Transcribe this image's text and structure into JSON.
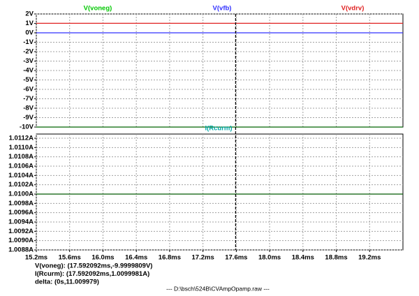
{
  "chart_data": [
    {
      "type": "line",
      "xlim": [
        15.2,
        19.6
      ],
      "ylim": [
        -10,
        2
      ],
      "yticks": [
        {
          "value": 2,
          "label": "2V"
        },
        {
          "value": 1,
          "label": "1V"
        },
        {
          "value": 0,
          "label": "0V"
        },
        {
          "value": -1,
          "label": "-1V"
        },
        {
          "value": -2,
          "label": "-2V"
        },
        {
          "value": -3,
          "label": "-3V"
        },
        {
          "value": -4,
          "label": "-4V"
        },
        {
          "value": -5,
          "label": "-5V"
        },
        {
          "value": -6,
          "label": "-6V"
        },
        {
          "value": -7,
          "label": "-7V"
        },
        {
          "value": -8,
          "label": "-8V"
        },
        {
          "value": -9,
          "label": "-9V"
        },
        {
          "value": -10,
          "label": "-10V"
        }
      ],
      "x": [
        15.2,
        19.6
      ],
      "series": [
        {
          "name": "V(voneg)",
          "color": "#00c800",
          "line_color": "#006400",
          "values": [
            -10,
            -10
          ]
        },
        {
          "name": "V(vfb)",
          "color": "#3030ff",
          "line_color": "#3030ff",
          "values": [
            0,
            0
          ]
        },
        {
          "name": "V(vdrv)",
          "color": "#e02020",
          "line_color": "#e02020",
          "values": [
            1.01,
            1.01
          ]
        }
      ],
      "grid": true
    },
    {
      "type": "line",
      "xlim": [
        15.2,
        19.6
      ],
      "xticks": [
        {
          "value": 15.2,
          "label": "15.2ms"
        },
        {
          "value": 15.6,
          "label": "15.6ms"
        },
        {
          "value": 16.0,
          "label": "16.0ms"
        },
        {
          "value": 16.4,
          "label": "16.4ms"
        },
        {
          "value": 16.8,
          "label": "16.8ms"
        },
        {
          "value": 17.2,
          "label": "17.2ms"
        },
        {
          "value": 17.6,
          "label": "17.6ms"
        },
        {
          "value": 18.0,
          "label": "18.0ms"
        },
        {
          "value": 18.4,
          "label": "18.4ms"
        },
        {
          "value": 18.8,
          "label": "18.8ms"
        },
        {
          "value": 19.2,
          "label": "19.2ms"
        }
      ],
      "ylim": [
        1.0088,
        1.0112
      ],
      "yticks": [
        {
          "value": 1.0112,
          "label": "1.0112A"
        },
        {
          "value": 1.011,
          "label": "1.0110A"
        },
        {
          "value": 1.0108,
          "label": "1.0108A"
        },
        {
          "value": 1.0106,
          "label": "1.0106A"
        },
        {
          "value": 1.0104,
          "label": "1.0104A"
        },
        {
          "value": 1.0102,
          "label": "1.0102A"
        },
        {
          "value": 1.01,
          "label": "1.0100A"
        },
        {
          "value": 1.0098,
          "label": "1.0098A"
        },
        {
          "value": 1.0096,
          "label": "1.0096A"
        },
        {
          "value": 1.0094,
          "label": "1.0094A"
        },
        {
          "value": 1.0092,
          "label": "1.0092A"
        },
        {
          "value": 1.009,
          "label": "1.0090A"
        },
        {
          "value": 1.0088,
          "label": "1.0088A"
        }
      ],
      "x": [
        15.2,
        19.6
      ],
      "series": [
        {
          "name": "I(Rcurm)",
          "color": "#00a8a8",
          "line_color": "#005a00",
          "values": [
            1.01,
            1.01
          ]
        }
      ],
      "grid": true
    }
  ],
  "cursor": {
    "x": 17.592092,
    "readout": [
      "V(voneg): (17.592092ms,-9.9999809V)",
      "I(Rcurm): (17.592092ms,1.0099981A)",
      "delta: (0s,11.009979)"
    ]
  },
  "footer": "---  D:\\bsch\\524B\\CVAmpOpamp.raw  ---"
}
